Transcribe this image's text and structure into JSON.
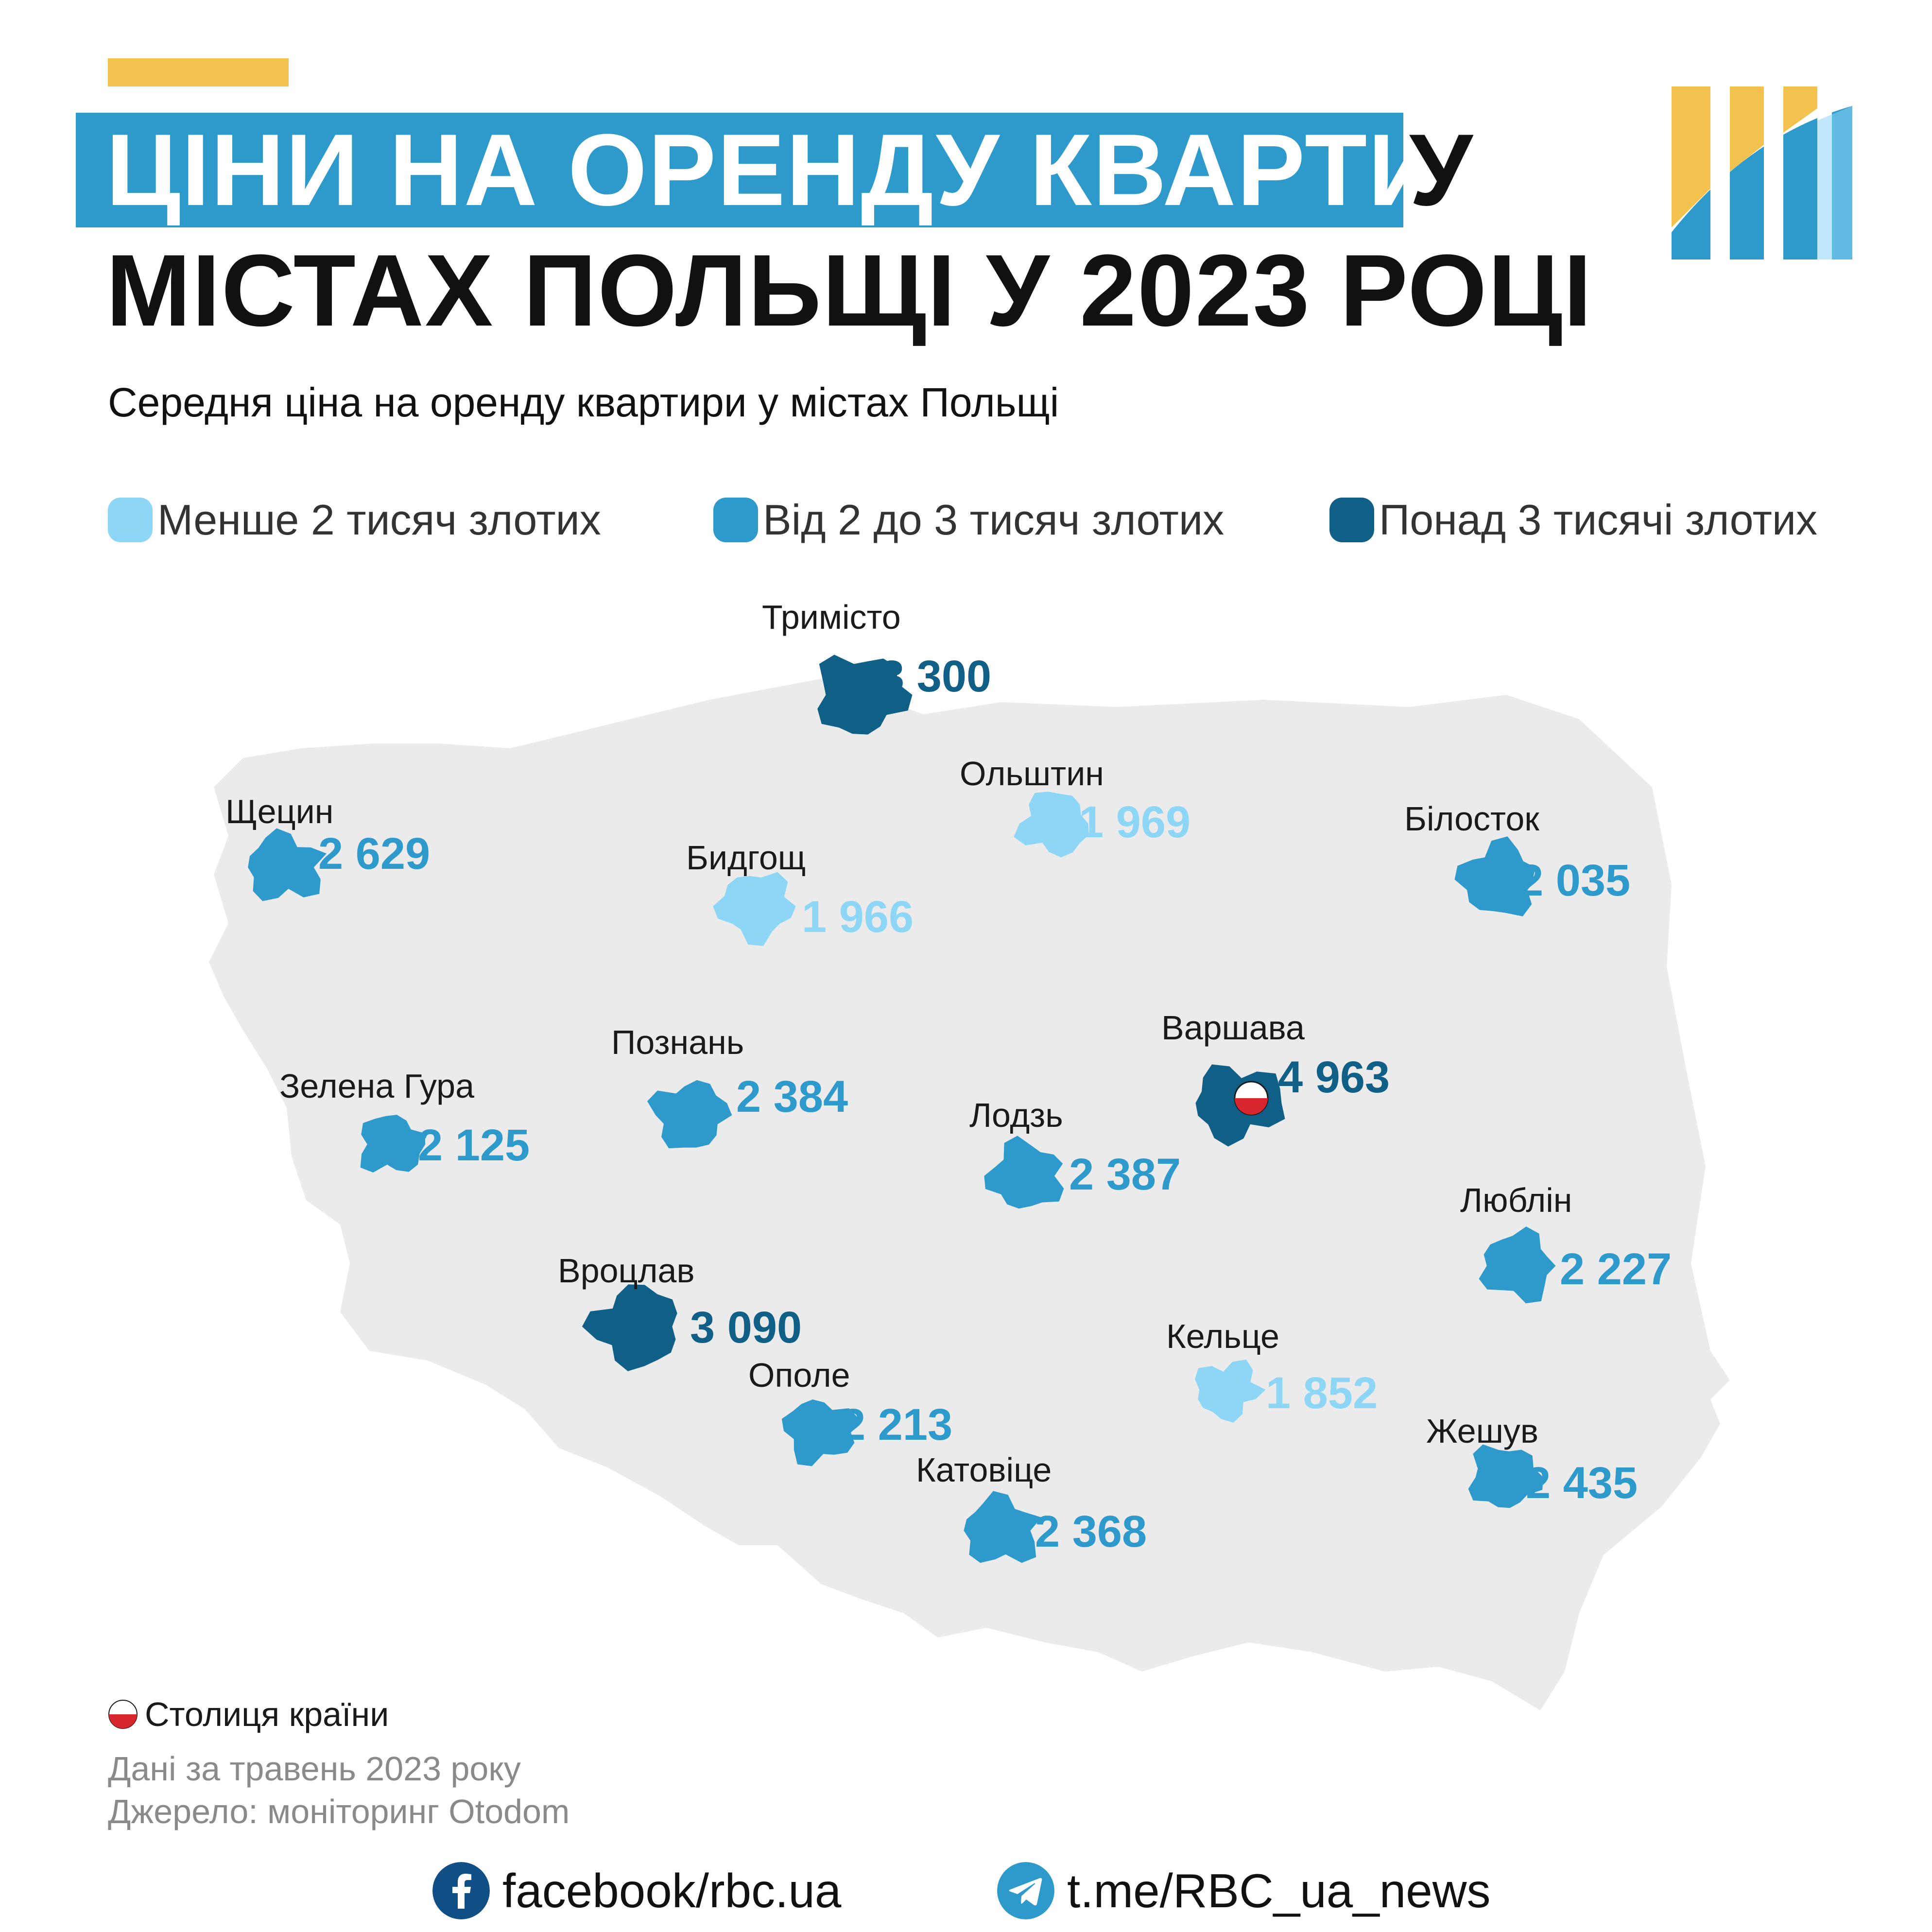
{
  "title": {
    "line1_highlight": "ЦІНИ НА ОРЕНДУ КВАРТИР",
    "line1_tail": "У",
    "line2": "МІСТАХ ПОЛЬЩІ У 2023 РОЦІ"
  },
  "subtitle": "Середня ціна на оренду квартири у містах Польщі",
  "legend": [
    {
      "label": "Менше 2 тисяч злотих",
      "color": "#8dd6f5"
    },
    {
      "label": "Від 2 до 3 тисяч злотих",
      "color": "#2e9acb"
    },
    {
      "label": "Понад 3 тисячі злотих",
      "color": "#105f86"
    }
  ],
  "cities": [
    {
      "name": "Тримісто",
      "price": "3 300",
      "tier": 2
    },
    {
      "name": "Щецин",
      "price": "2 629",
      "tier": 1
    },
    {
      "name": "Ольштин",
      "price": "1 969",
      "tier": 0
    },
    {
      "name": "Білосток",
      "price": "2 035",
      "tier": 1
    },
    {
      "name": "Бидгощ",
      "price": "1 966",
      "tier": 0
    },
    {
      "name": "Познань",
      "price": "2 384",
      "tier": 1
    },
    {
      "name": "Варшава",
      "price": "4 963",
      "tier": 2,
      "capital": true
    },
    {
      "name": "Зелена Гура",
      "price": "2 125",
      "tier": 1
    },
    {
      "name": "Лодзь",
      "price": "2 387",
      "tier": 1
    },
    {
      "name": "Люблін",
      "price": "2 227",
      "tier": 1
    },
    {
      "name": "Вроцлав",
      "price": "3 090",
      "tier": 2
    },
    {
      "name": "Кельце",
      "price": "1 852",
      "tier": 0
    },
    {
      "name": "Ополе",
      "price": "2 213",
      "tier": 1
    },
    {
      "name": "Жешув",
      "price": "2 435",
      "tier": 1
    },
    {
      "name": "Катовіце",
      "price": "2 368",
      "tier": 1
    }
  ],
  "notes": {
    "capital": "Столиця країни",
    "date": "Дані за травень 2023 року",
    "source": "Джерело: моніторинг Otodom"
  },
  "social": {
    "facebook": "facebook/rbc.ua",
    "telegram": "t.me/RBC_ua_news"
  },
  "colors": {
    "accent": "#f2c14e",
    "title_bg": "#2e9acb",
    "map_fill": "#ebebeb",
    "social_icon": "#0f4f86",
    "telegram_icon": "#2e9acb"
  },
  "icons": {
    "capital": "poland-flag-circle-icon",
    "facebook": "facebook-icon",
    "telegram": "telegram-icon",
    "logo": "rbc-logo"
  }
}
